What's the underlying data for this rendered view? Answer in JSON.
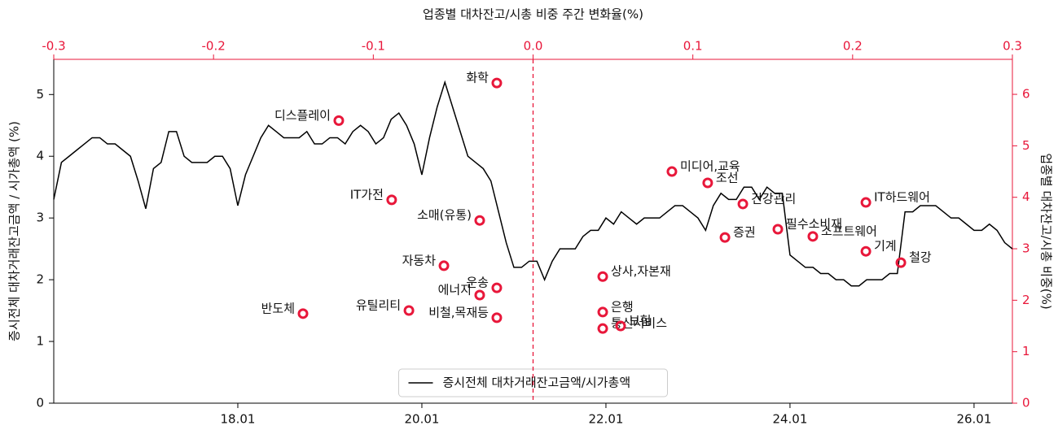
{
  "chart_data": [
    {
      "type": "line",
      "y_label": "증시전체 대차거래잔고금액 / 시가총액 (%)",
      "x": [
        "16.01",
        "16.02",
        "16.03",
        "16.04",
        "16.05",
        "16.06",
        "16.07",
        "16.08",
        "16.09",
        "16.10",
        "16.11",
        "16.12",
        "17.01",
        "17.02",
        "17.03",
        "17.04",
        "17.05",
        "17.06",
        "17.07",
        "17.08",
        "17.09",
        "17.10",
        "17.11",
        "17.12",
        "18.01",
        "18.02",
        "18.03",
        "18.04",
        "18.05",
        "18.06",
        "18.07",
        "18.08",
        "18.09",
        "18.10",
        "18.11",
        "18.12",
        "19.01",
        "19.02",
        "19.03",
        "19.04",
        "19.05",
        "19.06",
        "19.07",
        "19.08",
        "19.09",
        "19.10",
        "19.11",
        "19.12",
        "20.01",
        "20.02",
        "20.03",
        "20.04",
        "20.05",
        "20.06",
        "20.07",
        "20.08",
        "20.09",
        "20.10",
        "20.11",
        "20.12",
        "21.01",
        "21.02",
        "21.03",
        "21.04",
        "21.05",
        "21.06",
        "21.07",
        "21.08",
        "21.09",
        "21.10",
        "21.11",
        "21.12",
        "22.01",
        "22.02",
        "22.03",
        "22.04",
        "22.05",
        "22.06",
        "22.07",
        "22.08",
        "22.09",
        "22.10",
        "22.11",
        "22.12",
        "23.01",
        "23.02",
        "23.03",
        "23.04",
        "23.05",
        "23.06",
        "23.07",
        "23.08",
        "23.09",
        "23.10",
        "23.11",
        "23.12",
        "24.01",
        "24.02",
        "24.03",
        "24.04",
        "24.05",
        "24.06",
        "24.07",
        "24.08",
        "24.09",
        "24.10",
        "24.11",
        "24.12",
        "25.01",
        "25.02",
        "25.03",
        "25.04",
        "25.05",
        "25.06",
        "25.07",
        "25.08",
        "25.09",
        "25.10",
        "25.11",
        "25.12",
        "26.01",
        "26.02",
        "26.03",
        "26.04",
        "26.05",
        "26.06"
      ],
      "series": [
        {
          "name": "증시전체 대차거래잔고금액/시가총액",
          "color": "#000000",
          "values": [
            3.3,
            3.9,
            4.0,
            4.1,
            4.2,
            4.3,
            4.3,
            4.2,
            4.2,
            4.1,
            4.0,
            3.6,
            3.15,
            3.8,
            3.9,
            4.4,
            4.4,
            4.0,
            3.9,
            3.9,
            3.9,
            4.0,
            4.0,
            3.8,
            3.2,
            3.7,
            4.0,
            4.3,
            4.5,
            4.4,
            4.3,
            4.3,
            4.3,
            4.4,
            4.2,
            4.2,
            4.3,
            4.3,
            4.2,
            4.4,
            4.5,
            4.4,
            4.2,
            4.3,
            4.6,
            4.7,
            4.5,
            4.2,
            3.7,
            4.3,
            4.8,
            5.2,
            4.8,
            4.4,
            4.0,
            3.9,
            3.8,
            3.6,
            3.1,
            2.6,
            2.2,
            2.2,
            2.3,
            2.3,
            2.0,
            2.3,
            2.5,
            2.5,
            2.5,
            2.7,
            2.8,
            2.8,
            3.0,
            2.9,
            3.1,
            3.0,
            2.9,
            3.0,
            3.0,
            3.0,
            3.1,
            3.2,
            3.2,
            3.1,
            3.0,
            2.8,
            3.2,
            3.4,
            3.3,
            3.3,
            3.5,
            3.5,
            3.3,
            3.5,
            3.4,
            3.4,
            2.4,
            2.3,
            2.2,
            2.2,
            2.1,
            2.1,
            2.0,
            2.0,
            1.9,
            1.9,
            2.0,
            2.0,
            2.0,
            2.1,
            2.1,
            3.1,
            3.1,
            3.2,
            3.2,
            3.2,
            3.1,
            3.0,
            3.0,
            2.9,
            2.8,
            2.8,
            2.9,
            2.8,
            2.6,
            2.5
          ]
        }
      ],
      "xlim": [
        "16.01",
        "26.06"
      ],
      "xticks": [
        "18.01",
        "20.01",
        "22.01",
        "24.01",
        "26.01"
      ],
      "ylim": [
        0,
        5.57
      ],
      "yticks": [
        0,
        1,
        2,
        3,
        4,
        5
      ],
      "legend": "lower center"
    },
    {
      "type": "scatter",
      "x_label": "업종별 대차잔고/시총 비중 주간 변화율(%)",
      "y_label": "업종별 대차잔고/시총 비중(%)",
      "color": "#e8173a",
      "x_axis": "top",
      "y_axis": "right",
      "labels": [
        "화학",
        "디스플레이",
        "IT가전",
        "소매(유통)",
        "자동차",
        "운송",
        "에너지",
        "반도체",
        "유틸리티",
        "비철,목재등",
        "상사,자본재",
        "은행",
        "통신서비스",
        "보험",
        "미디어,교육",
        "조선",
        "건강관리",
        "증권",
        "필수소비재",
        "소프트웨어",
        "IT하드웨어",
        "기계",
        "철강"
      ],
      "x": [
        -0.0227,
        -0.1216,
        -0.0885,
        -0.0334,
        -0.0558,
        -0.0227,
        -0.0334,
        -0.144,
        -0.0777,
        -0.0227,
        0.0436,
        0.0436,
        0.0436,
        0.0548,
        0.0869,
        0.1093,
        0.1313,
        0.1201,
        0.1532,
        0.1751,
        0.2083,
        0.2083,
        0.2302
      ],
      "values": [
        6.22,
        5.49,
        3.95,
        3.55,
        2.67,
        2.24,
        2.1,
        1.74,
        1.8,
        1.66,
        2.46,
        1.77,
        1.45,
        1.5,
        4.5,
        4.28,
        3.87,
        3.22,
        3.38,
        3.24,
        3.9,
        2.95,
        2.73
      ],
      "xlim": [
        -0.3,
        0.3
      ],
      "xticks": [
        -0.3,
        -0.2,
        -0.1,
        {
          "value": 0,
          "label": "0.0"
        },
        0.1,
        0.2,
        0.3
      ],
      "ylim": [
        0,
        6.68
      ],
      "yticks": [
        0,
        1,
        2,
        3,
        4,
        5,
        6
      ],
      "reference_line": {
        "x": 0,
        "color": "#e8173a",
        "style": "dashed"
      }
    }
  ]
}
